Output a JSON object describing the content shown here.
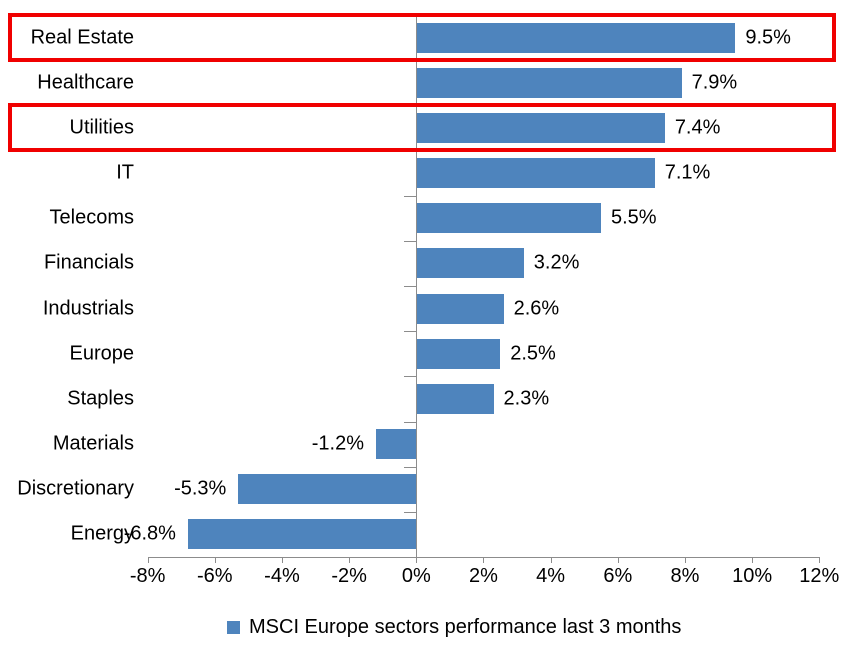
{
  "chart_data": {
    "type": "bar",
    "orientation": "horizontal",
    "categories": [
      "Real Estate",
      "Healthcare",
      "Utilities",
      "IT",
      "Telecoms",
      "Financials",
      "Industrials",
      "Europe",
      "Staples",
      "Materials",
      "Discretionary",
      "Energy"
    ],
    "values": [
      9.5,
      7.9,
      7.4,
      7.1,
      5.5,
      3.2,
      2.6,
      2.5,
      2.3,
      -1.2,
      -5.3,
      -6.8
    ],
    "value_labels": [
      "9.5%",
      "7.9%",
      "7.4%",
      "7.1%",
      "5.5%",
      "3.2%",
      "2.6%",
      "2.5%",
      "2.3%",
      "-1.2%",
      "-5.3%",
      "-6.8%"
    ],
    "highlighted_categories": [
      "Real Estate",
      "Utilities"
    ],
    "x_axis": {
      "min": -8,
      "max": 12,
      "tick_step": 2,
      "tick_values": [
        -8,
        -6,
        -4,
        -2,
        0,
        2,
        4,
        6,
        8,
        10,
        12
      ],
      "tick_labels": [
        "-8%",
        "-6%",
        "-4%",
        "-2%",
        "0%",
        "2%",
        "4%",
        "6%",
        "8%",
        "10%",
        "12%"
      ]
    },
    "legend": {
      "label": "MSCI Europe sectors performance last 3 months",
      "position": "bottom"
    },
    "grid": false,
    "colors": {
      "bar": "#4e84bd",
      "highlight_border": "#f00000",
      "axis": "#8c8c8c",
      "text": "#000000"
    }
  }
}
